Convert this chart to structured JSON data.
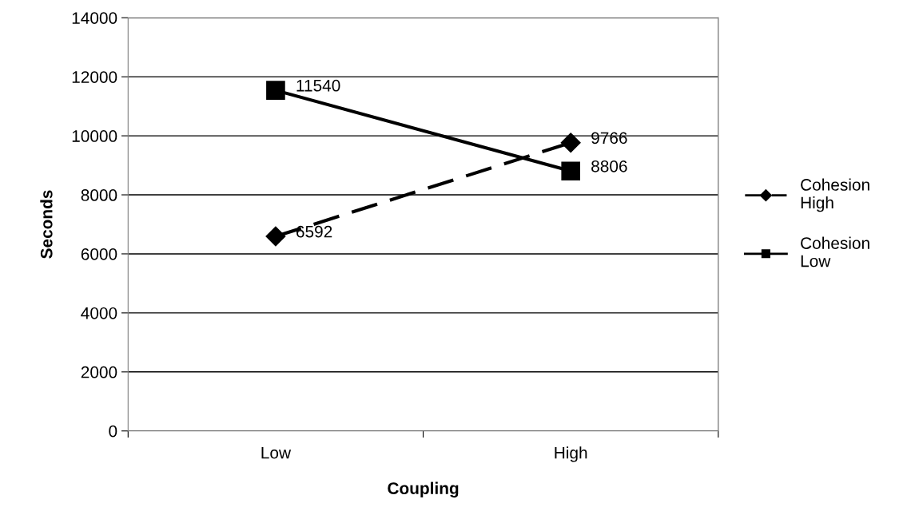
{
  "chart_data": {
    "type": "line",
    "xlabel": "Coupling",
    "ylabel": "Seconds",
    "categories": [
      "Low",
      "High"
    ],
    "series": [
      {
        "name": "Cohesion High",
        "color": "#000000",
        "values": [
          6592,
          9766
        ],
        "marker": "diamond",
        "line_style": "dashed"
      },
      {
        "name": "Cohesion Low",
        "color": "#000000",
        "values": [
          11540,
          8806
        ],
        "marker": "square",
        "line_style": "solid"
      }
    ],
    "ylim": [
      0,
      14000
    ],
    "yticks": [
      0,
      2000,
      4000,
      6000,
      8000,
      10000,
      12000,
      14000
    ],
    "grid": "y",
    "legend": "right",
    "data_labels": true
  }
}
